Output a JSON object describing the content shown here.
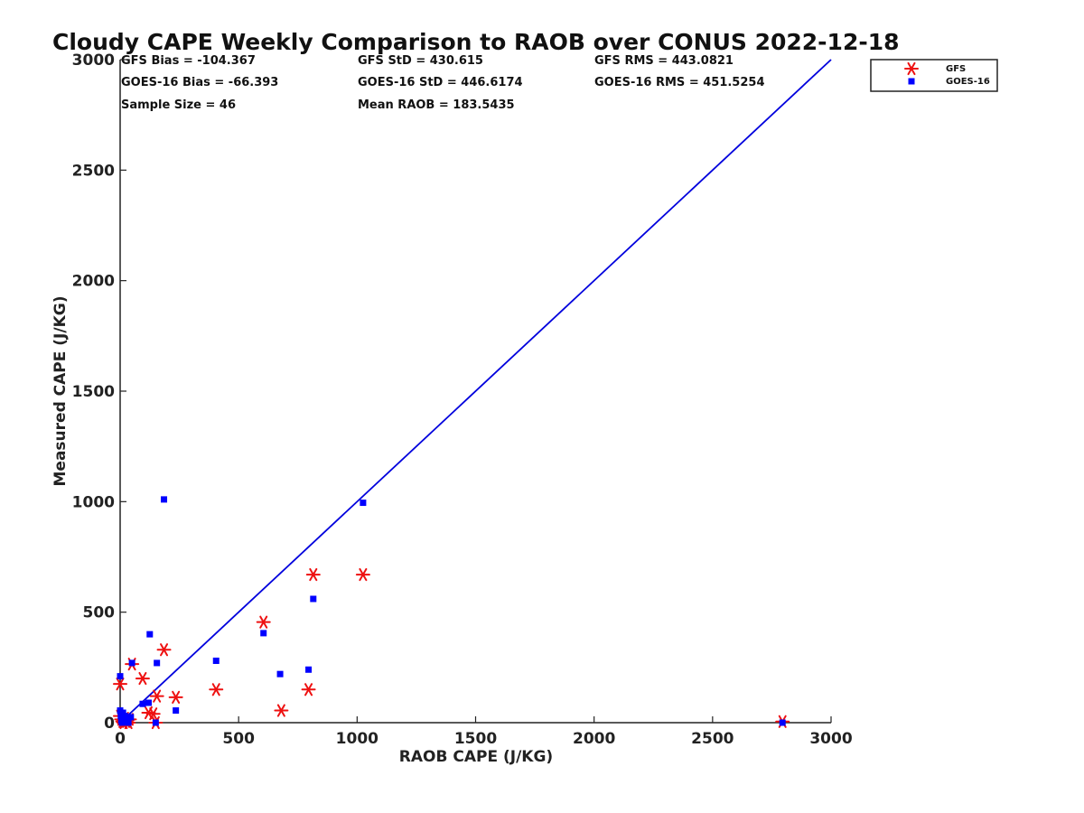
{
  "chart_data": {
    "type": "scatter",
    "title": "Cloudy CAPE Weekly Comparison to RAOB over CONUS 2022-12-18",
    "xlabel": "RAOB CAPE (J/KG)",
    "ylabel": "Measured CAPE (J/KG)",
    "xlim": [
      0,
      3000
    ],
    "ylim": [
      0,
      3000
    ],
    "x_ticks": [
      "0",
      "500",
      "1000",
      "1500",
      "2000",
      "2500",
      "3000"
    ],
    "y_ticks": [
      "0",
      "500",
      "1000",
      "1500",
      "2000",
      "2500",
      "3000"
    ],
    "grid": false,
    "legend_position": "top-right outside",
    "reference_line": {
      "from": [
        0,
        0
      ],
      "to": [
        3000,
        3000
      ],
      "color": "#0000dd"
    },
    "stats": [
      [
        "GFS Bias = -104.367",
        "GFS StD = 430.615",
        "GFS RMS = 443.0821"
      ],
      [
        "GOES-16 Bias = -66.393",
        "GOES-16 StD = 446.6174",
        "GOES-16 RMS = 451.5254"
      ],
      [
        "Sample Size = 46",
        "Mean RAOB = 183.5435",
        ""
      ]
    ],
    "series": [
      {
        "name": "GFS",
        "marker": "asterisk",
        "color": "#ee1111",
        "points": [
          [
            0,
            175
          ],
          [
            0,
            30
          ],
          [
            5,
            15
          ],
          [
            10,
            5
          ],
          [
            15,
            0
          ],
          [
            20,
            20
          ],
          [
            25,
            5
          ],
          [
            30,
            10
          ],
          [
            35,
            0
          ],
          [
            40,
            15
          ],
          [
            50,
            265
          ],
          [
            95,
            200
          ],
          [
            120,
            45
          ],
          [
            140,
            40
          ],
          [
            150,
            0
          ],
          [
            155,
            120
          ],
          [
            185,
            330
          ],
          [
            235,
            115
          ],
          [
            405,
            150
          ],
          [
            605,
            455
          ],
          [
            680,
            55
          ],
          [
            795,
            150
          ],
          [
            815,
            670
          ],
          [
            1025,
            670
          ],
          [
            2795,
            5
          ]
        ]
      },
      {
        "name": "GOES-16",
        "marker": "square",
        "color": "#0000ff",
        "points": [
          [
            0,
            210
          ],
          [
            0,
            55
          ],
          [
            3,
            30
          ],
          [
            5,
            10
          ],
          [
            8,
            0
          ],
          [
            12,
            45
          ],
          [
            15,
            20
          ],
          [
            20,
            30
          ],
          [
            25,
            5
          ],
          [
            30,
            15
          ],
          [
            35,
            0
          ],
          [
            45,
            25
          ],
          [
            50,
            270
          ],
          [
            95,
            85
          ],
          [
            120,
            90
          ],
          [
            125,
            400
          ],
          [
            150,
            0
          ],
          [
            155,
            270
          ],
          [
            185,
            1010
          ],
          [
            235,
            55
          ],
          [
            405,
            280
          ],
          [
            605,
            405
          ],
          [
            675,
            220
          ],
          [
            795,
            240
          ],
          [
            815,
            560
          ],
          [
            1025,
            995
          ],
          [
            2795,
            0
          ]
        ]
      }
    ]
  }
}
